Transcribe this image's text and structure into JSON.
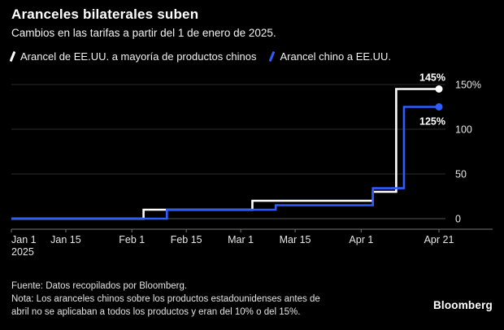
{
  "header": {
    "title": "Aranceles bilaterales suben",
    "subtitle": "Cambios en las tarifas a partir del 1 de enero de 2025."
  },
  "legend": [
    {
      "label": "Arancel de EE.UU. a mayoría de productos chinos",
      "color": "#ffffff"
    },
    {
      "label": "Arancel chino a EE.UU.",
      "color": "#2e5eff"
    }
  ],
  "chart_data": {
    "type": "line",
    "style": "step-after",
    "title": "Aranceles bilaterales suben",
    "subtitle": "Cambios en las tarifas a partir del 1 de enero de 2025.",
    "x_unit": "days since Jan 1, 2025",
    "x_range": [
      0,
      110
    ],
    "ylim": [
      0,
      150
    ],
    "grid": "horizontal",
    "legend_position": "top",
    "background": "#000000",
    "x_ticks": [
      {
        "day": 0,
        "label": "Jan 1",
        "sublabel": "2025"
      },
      {
        "day": 14,
        "label": "Jan 15"
      },
      {
        "day": 31,
        "label": "Feb 1"
      },
      {
        "day": 45,
        "label": "Feb 15"
      },
      {
        "day": 59,
        "label": "Mar 1"
      },
      {
        "day": 73,
        "label": "Mar 15"
      },
      {
        "day": 90,
        "label": "Apr 1"
      },
      {
        "day": 110,
        "label": "Apr 21"
      }
    ],
    "y_ticks": [
      {
        "value": 150,
        "label": "150%"
      },
      {
        "value": 100,
        "label": "100"
      },
      {
        "value": 50,
        "label": "50"
      },
      {
        "value": 0,
        "label": "0"
      }
    ],
    "series": [
      {
        "name": "Arancel de EE.UU. a mayoría de productos chinos",
        "color": "#ffffff",
        "end_label": "145%",
        "end_label_position": "above",
        "points": [
          [
            0,
            0
          ],
          [
            34,
            10
          ],
          [
            62,
            20
          ],
          [
            93,
            30
          ],
          [
            99,
            145
          ],
          [
            110,
            145
          ]
        ]
      },
      {
        "name": "Arancel chino a EE.UU.",
        "color": "#2e5eff",
        "end_label": "125%",
        "end_label_position": "below",
        "points": [
          [
            0,
            0
          ],
          [
            40,
            10
          ],
          [
            68,
            15
          ],
          [
            93,
            34
          ],
          [
            101,
            125
          ],
          [
            110,
            125
          ]
        ]
      }
    ]
  },
  "footer": {
    "source": "Fuente: Datos recopilados por Bloomberg.",
    "note_line1": "Nota: Los aranceles chinos sobre los productos estadounidenses antes de",
    "note_line2": "abril no se aplicaban a todos los productos y eran del 10% o del 15%.",
    "brand": "Bloomberg"
  }
}
